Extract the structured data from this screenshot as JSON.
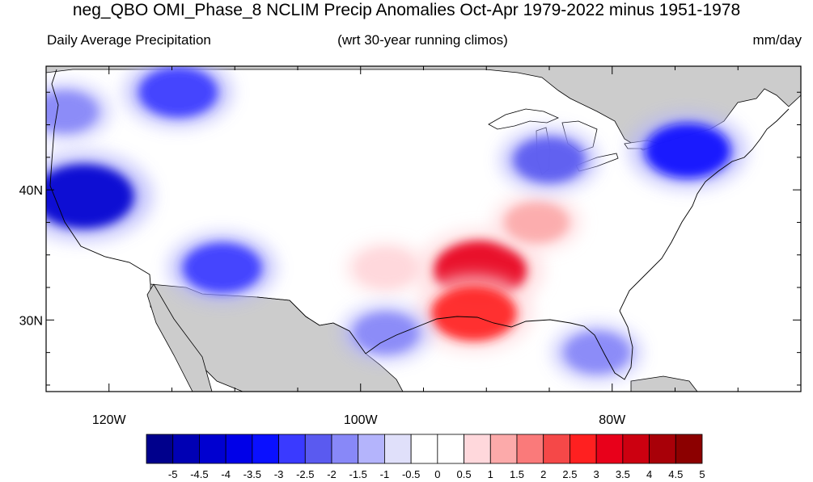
{
  "title": "neg_QBO OMI_Phase_8 NCLIM Precip Anomalies Oct-Apr 1979-2022 minus 1951-1978",
  "subtitle_left": "Daily Average Precipitation",
  "subtitle_center": "(wrt 30-year running climos)",
  "subtitle_right": "mm/day",
  "map": {
    "projection": "lat-lon",
    "lon_range": [
      -125,
      -65
    ],
    "lat_range": [
      24.5,
      49.5
    ],
    "land_outside_color": "#cccccc",
    "ocean_color": "#ffffff",
    "lon_ticks": [
      {
        "value": -120,
        "label": "120W"
      },
      {
        "value": -100,
        "label": "100W"
      },
      {
        "value": -80,
        "label": "80W"
      }
    ],
    "lat_ticks": [
      {
        "value": 30,
        "label": "30N"
      },
      {
        "value": 40,
        "label": "40N"
      }
    ]
  },
  "anomaly_regions": [
    {
      "name": "southeast-wet-max",
      "lon": -90.5,
      "lat": 33.8,
      "value": 3.5
    },
    {
      "name": "lower-mississippi",
      "lon": -91.0,
      "lat": 30.5,
      "value": 3.0
    },
    {
      "name": "ohio-valley",
      "lon": -86,
      "lat": 37.5,
      "value": 1.5
    },
    {
      "name": "texas-north",
      "lon": -98,
      "lat": 34,
      "value": 1.0
    },
    {
      "name": "northeast-dry",
      "lon": -74,
      "lat": 43,
      "value": -3.0
    },
    {
      "name": "great-lakes-dry",
      "lon": -85,
      "lat": 42.3,
      "value": -2.0
    },
    {
      "name": "california-dry",
      "lon": -122,
      "lat": 39.5,
      "value": -4.0
    },
    {
      "name": "pacific-nw-dry",
      "lon": -123.5,
      "lat": 46,
      "value": -1.5
    },
    {
      "name": "arizona-dry",
      "lon": -111,
      "lat": 34,
      "value": -2.5
    },
    {
      "name": "northern-rockies-dry",
      "lon": -114.5,
      "lat": 47.5,
      "value": -2.5
    },
    {
      "name": "florida-dry",
      "lon": -81.2,
      "lat": 27.5,
      "value": -1.5
    },
    {
      "name": "south-texas-dry",
      "lon": -98,
      "lat": 29,
      "value": -1.5
    }
  ],
  "colorbar": {
    "labels": [
      "-5",
      "-4.5",
      "-4",
      "-3.5",
      "-3",
      "-2.5",
      "-2",
      "-1.5",
      "-1",
      "-0.5",
      "0",
      "0.5",
      "1",
      "1.5",
      "2",
      "2.5",
      "3",
      "3.5",
      "4",
      "4.5",
      "5"
    ],
    "colors": [
      "#00008c",
      "#0000b4",
      "#0000d0",
      "#0000e8",
      "#0a10ff",
      "#3a3aff",
      "#5a5af0",
      "#8888f8",
      "#b4b4fc",
      "#e0e0fa",
      "#ffffff",
      "#ffffff",
      "#ffd8dc",
      "#fcaaaa",
      "#fa7a7a",
      "#f54848",
      "#ff2020",
      "#e8001a",
      "#cc0010",
      "#a80008",
      "#8c0000"
    ]
  }
}
